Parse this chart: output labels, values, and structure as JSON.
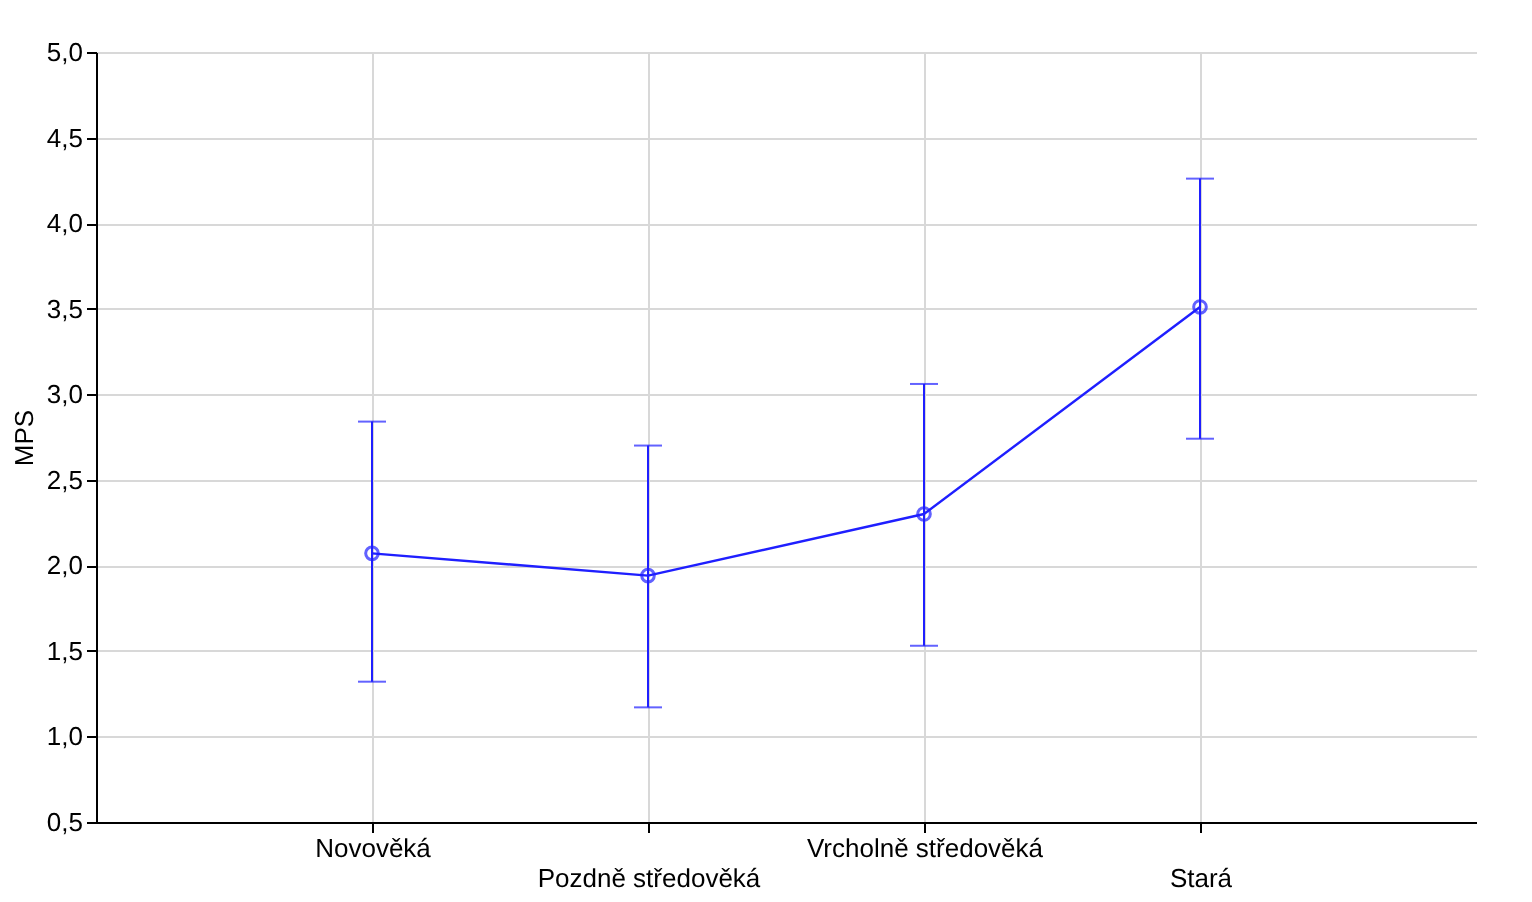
{
  "chart_data": {
    "type": "line",
    "ylabel": "MPS",
    "categories": [
      "Novověká",
      "Pozdně středověká",
      "Vrcholně středověká",
      "Stará"
    ],
    "series": [
      {
        "color": "#1f1fff",
        "values": [
          2.07,
          1.94,
          2.3,
          3.51
        ],
        "errors": [
          [
            1.32,
            2.84
          ],
          [
            1.17,
            2.7
          ],
          [
            1.53,
            3.06
          ],
          [
            2.74,
            4.26
          ]
        ]
      }
    ],
    "ylim": [
      0.5,
      5.0
    ],
    "yticks": [
      {
        "value": 0.5,
        "label": "0,5"
      },
      {
        "value": 1.0,
        "label": "1,0"
      },
      {
        "value": 1.5,
        "label": "1,5"
      },
      {
        "value": 2.0,
        "label": "2,0"
      },
      {
        "value": 2.5,
        "label": "2,5"
      },
      {
        "value": 3.0,
        "label": "3,0"
      },
      {
        "value": 3.5,
        "label": "3,5"
      },
      {
        "value": 4.0,
        "label": "4,0"
      },
      {
        "value": 4.5,
        "label": "4,5"
      },
      {
        "value": 5.0,
        "label": "5,0"
      }
    ],
    "grid": true,
    "marker": "circle",
    "line_style": "solid"
  }
}
